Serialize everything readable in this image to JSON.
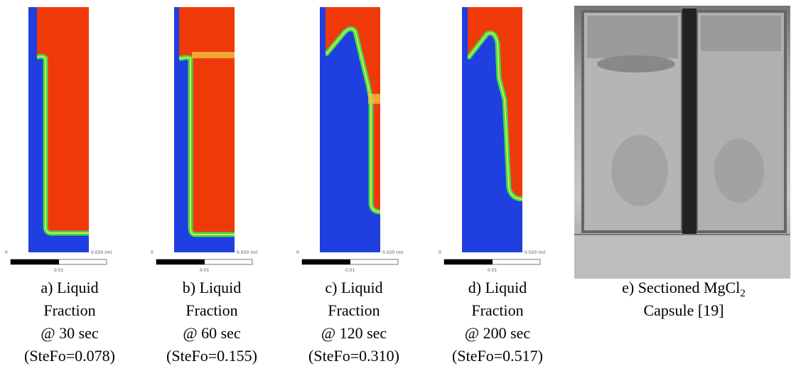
{
  "panels": [
    {
      "caption": [
        "a) Liquid",
        "Fraction",
        "@ 30 sec",
        "(SteFo=0.078)"
      ],
      "scale": {
        "start": "0",
        "end": "0.020 (m)",
        "mid": "0.01"
      }
    },
    {
      "caption": [
        "b) Liquid",
        "Fraction",
        "@ 60 sec",
        "(SteFo=0.155)"
      ],
      "scale": {
        "start": "0",
        "end": "0.020 (m)",
        "mid": "0.01"
      }
    },
    {
      "caption": [
        "c) Liquid",
        "Fraction",
        "@ 120 sec",
        "(SteFo=0.310)"
      ],
      "scale": {
        "start": "0",
        "end": "0.020 (m)",
        "mid": "0.01"
      }
    },
    {
      "caption": [
        "d) Liquid",
        "Fraction",
        "@ 200 sec",
        "(SteFo=0.517)"
      ],
      "scale": {
        "start": "0",
        "end": "0.020 (m)",
        "mid": "0.01"
      }
    }
  ],
  "photo": {
    "caption_line1": "e) Sectioned MgCl",
    "caption_subscript": "2",
    "caption_line2": "Capsule [19]"
  }
}
